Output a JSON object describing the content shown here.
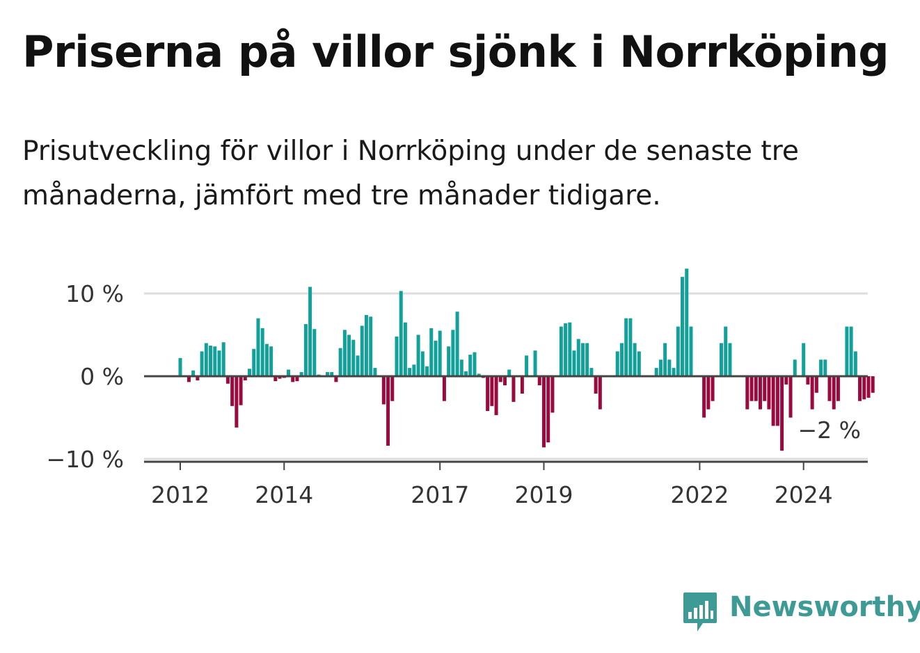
{
  "title": "Priserna på villor sjönk i Norrköping",
  "subtitle": "Prisutveckling för villor i Norrköping under de senaste tre månaderna, jämfört med tre månader tidigare.",
  "brand": {
    "name": "Newsworthy",
    "icon": "bar-chart-logo-icon"
  },
  "colors": {
    "positive": "#12a09a",
    "negative": "#9a0a3f",
    "zero_line": "#444444",
    "grid": "#dddddd"
  },
  "chart_data": {
    "type": "bar",
    "title": "",
    "xlabel": "",
    "ylabel": "",
    "ylim": [
      -10,
      10
    ],
    "yticks": [
      {
        "value": 10,
        "label": "10 %"
      },
      {
        "value": 0,
        "label": "0 %"
      },
      {
        "value": -10,
        "label": "−10 %"
      }
    ],
    "xticks": [
      {
        "year": 2012,
        "label": "2012"
      },
      {
        "year": 2014,
        "label": "2014"
      },
      {
        "year": 2017,
        "label": "2017"
      },
      {
        "year": 2019,
        "label": "2019"
      },
      {
        "year": 2022,
        "label": "2022"
      },
      {
        "year": 2024,
        "label": "2024"
      }
    ],
    "start": "2012-01",
    "frequency": "monthly",
    "annotation": {
      "text": "−2 %",
      "value": -2
    },
    "values": [
      2.2,
      0,
      -0.7,
      0.7,
      -0.5,
      3,
      4,
      3.7,
      3.6,
      3.1,
      4.1,
      -0.9,
      -3.6,
      -6.2,
      -3.5,
      -0.5,
      0.9,
      3.3,
      7,
      5.8,
      3.9,
      3.6,
      -0.6,
      -0.3,
      -0.2,
      0.8,
      -0.7,
      -0.6,
      0.5,
      6.3,
      10.8,
      5.7,
      0.2,
      0,
      0.5,
      0.5,
      -0.7,
      3.4,
      5.6,
      5,
      4.4,
      2.5,
      6.1,
      7.4,
      7.2,
      1,
      0,
      -3.4,
      -8.4,
      -3,
      4.8,
      10.3,
      6.5,
      1,
      1.4,
      5,
      3,
      1.2,
      5.8,
      4.3,
      5.5,
      -3,
      3.6,
      5.6,
      7.8,
      2,
      0.6,
      2.6,
      2.9,
      0.3,
      -0.2,
      -4.2,
      -3.6,
      -4.7,
      -0.7,
      -1.1,
      0.8,
      -3.1,
      0,
      -2.1,
      2.5,
      0,
      3.1,
      -1.1,
      -8.6,
      -8,
      -4.4,
      0,
      6,
      6.4,
      6.5,
      3.1,
      4.5,
      4,
      4,
      1,
      -2.1,
      -4,
      0,
      0,
      0,
      3,
      4,
      7,
      7,
      4,
      3,
      0,
      0,
      0,
      1,
      2,
      4,
      2,
      1,
      6,
      12,
      13,
      6,
      0,
      0,
      -5,
      -4,
      -3,
      0,
      4,
      6,
      4,
      0,
      0,
      0,
      -4,
      -3,
      -3,
      -4,
      -3,
      -4,
      -6,
      -6,
      -9,
      -1,
      -5,
      2,
      0,
      4,
      -1,
      -4,
      -2,
      2,
      2,
      -3,
      -4,
      -3,
      0,
      6,
      6,
      3,
      -3,
      -2.8,
      -2.6,
      -2
    ]
  }
}
